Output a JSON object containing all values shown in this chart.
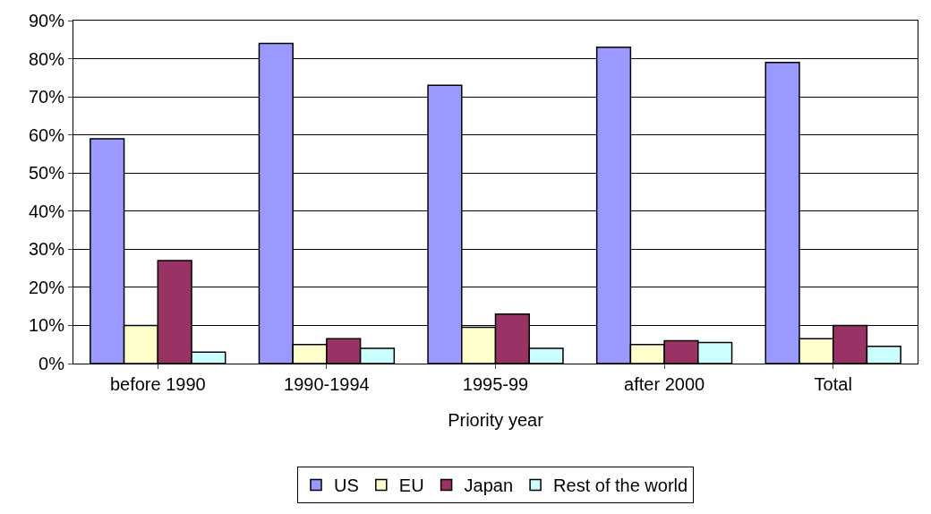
{
  "chart_data": {
    "type": "bar",
    "xlabel": "Priority year",
    "categories": [
      "before 1990",
      "1990-1994",
      "1995-99",
      "after 2000",
      "Total"
    ],
    "series": [
      {
        "name": "US",
        "color": "#9999ff",
        "values": [
          59,
          84,
          73,
          83,
          79
        ]
      },
      {
        "name": "EU",
        "color": "#ffffcc",
        "values": [
          10,
          5,
          9.5,
          5,
          6.5
        ]
      },
      {
        "name": "Japan",
        "color": "#993366",
        "values": [
          27,
          6.5,
          13,
          6,
          10
        ]
      },
      {
        "name": "Rest of the world",
        "color": "#ccffff",
        "values": [
          3,
          4,
          4,
          5.5,
          4.5
        ]
      }
    ],
    "ylim": [
      0,
      90
    ],
    "yticks": [
      {
        "value": 0,
        "label": "0%"
      },
      {
        "value": 10,
        "label": "10%"
      },
      {
        "value": 20,
        "label": "20%"
      },
      {
        "value": 30,
        "label": "30%"
      },
      {
        "value": 40,
        "label": "40%"
      },
      {
        "value": 50,
        "label": "50%"
      },
      {
        "value": 60,
        "label": "60%"
      },
      {
        "value": 70,
        "label": "70%"
      },
      {
        "value": 80,
        "label": "80%"
      },
      {
        "value": 90,
        "label": "90%"
      }
    ],
    "grid": "y",
    "legend": "bottom"
  }
}
